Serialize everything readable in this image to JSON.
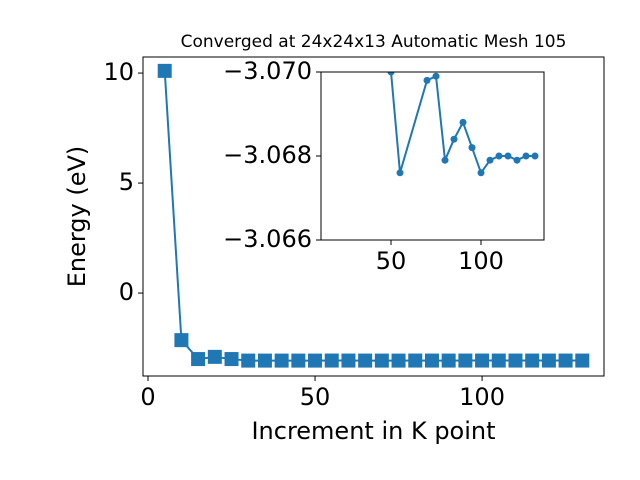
{
  "chart_data": [
    {
      "type": "line",
      "title": "Converged at 24x24x13 Automatic Mesh 105",
      "xlabel": "Increment in K point",
      "ylabel": "Energy (eV)",
      "marker": "square",
      "x": [
        5,
        10,
        15,
        20,
        25,
        30,
        35,
        40,
        45,
        50,
        55,
        60,
        65,
        70,
        75,
        80,
        85,
        90,
        95,
        100,
        105,
        110,
        115,
        120,
        125,
        130
      ],
      "series": [
        {
          "color": "#1f77b4",
          "values": [
            10.1,
            -2.14,
            -3.0,
            -2.9,
            -3.0,
            -3.07,
            -3.07,
            -3.07,
            -3.07,
            -3.07,
            -3.0676,
            -3.068,
            -3.069,
            -3.0698,
            -3.0699,
            -3.0679,
            -3.0684,
            -3.0688,
            -3.0682,
            -3.0676,
            -3.0679,
            -3.068,
            -3.068,
            -3.0679,
            -3.068,
            -3.068
          ]
        }
      ],
      "xlim": [
        -1.5,
        136.5
      ],
      "xticks": [
        0,
        50,
        100
      ],
      "ylim": [
        -3.77,
        10.73
      ],
      "yticks": [
        0,
        5,
        10
      ]
    },
    {
      "type": "line",
      "marker": "circle",
      "x": [
        50,
        55,
        70,
        75,
        80,
        85,
        90,
        95,
        100,
        105,
        110,
        115,
        120,
        125,
        130
      ],
      "series": [
        {
          "color": "#1f77b4",
          "values": [
            -3.07,
            -3.0676,
            -3.0698,
            -3.0699,
            -3.0679,
            -3.0684,
            -3.0688,
            -3.0682,
            -3.0676,
            -3.0679,
            -3.068,
            -3.068,
            -3.0679,
            -3.068,
            -3.068
          ]
        }
      ],
      "xlim": [
        11.1,
        135
      ],
      "xticks": [
        50,
        100
      ],
      "ylim": [
        -3.066,
        -3.07
      ],
      "yticks": [
        {
          "value": -3.066,
          "label": "−3.066"
        },
        {
          "value": -3.068,
          "label": "−3.068"
        },
        {
          "value": -3.07,
          "label": "−3.070"
        }
      ]
    }
  ]
}
